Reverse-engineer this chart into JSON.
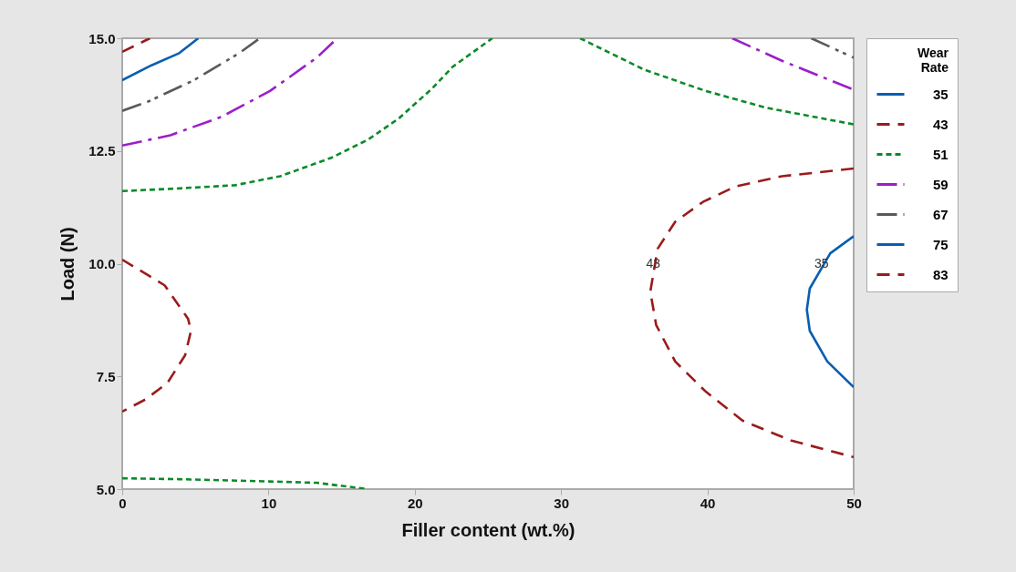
{
  "chart_data": {
    "type": "line",
    "xlabel": "Filler content (wt.%)",
    "ylabel": "Load (N)",
    "legend_title": "Wear Rate",
    "legend": "top right",
    "grid": false,
    "xlim": [
      0,
      50
    ],
    "xticks": [
      0,
      10,
      20,
      30,
      40,
      50
    ],
    "ylim": [
      5,
      15
    ],
    "yticks": [
      {
        "value": 5,
        "label": "5.0"
      },
      7.5,
      {
        "value": 10,
        "label": "10.0"
      },
      12.5,
      {
        "value": 15,
        "label": "15.0"
      }
    ],
    "series": [
      {
        "name": "35",
        "color": "#0a5eb0",
        "line_style": "solid",
        "x": [
          50,
          48.4,
          47.0,
          46.8,
          47.0,
          48.2,
          50
        ],
        "values": [
          10.61,
          10.23,
          9.45,
          8.98,
          8.51,
          7.83,
          7.26
        ]
      },
      {
        "name": "43",
        "color": "#9b1b1b",
        "line_style": "dashed",
        "x": [
          0,
          2.9,
          4.5,
          4.7,
          4.3,
          3.1,
          1.6,
          0,
          null,
          50,
          45.1,
          41.9,
          39.7,
          37.8,
          36.6,
          36.1,
          36.5,
          37.8,
          39.9,
          42.4,
          45.7,
          50
        ],
        "values": [
          10.09,
          9.52,
          8.78,
          8.51,
          7.97,
          7.36,
          6.99,
          6.72,
          null,
          12.11,
          11.94,
          11.71,
          11.37,
          10.93,
          10.33,
          9.38,
          8.64,
          7.83,
          7.16,
          6.52,
          6.08,
          5.71
        ]
      },
      {
        "name": "51",
        "color": "#0a8a2a",
        "line_style": "dotted",
        "x": [
          0,
          3.9,
          7.7,
          10.8,
          14.3,
          16.8,
          18.9,
          21.2,
          22.6,
          25.3,
          null,
          31.3,
          35.7,
          39.9,
          44.0,
          50,
          null,
          0,
          3.9,
          10.1,
          13.3,
          16.8
        ],
        "values": [
          11.61,
          11.67,
          11.74,
          11.94,
          12.35,
          12.75,
          13.22,
          13.89,
          14.37,
          15,
          null,
          15,
          14.3,
          13.83,
          13.46,
          13.09,
          null,
          5.24,
          5.22,
          5.17,
          5.14,
          5.0
        ]
      },
      {
        "name": "59",
        "color": "#9b1fc8",
        "line_style": "dashdot",
        "x": [
          0,
          3.3,
          6.8,
          10.1,
          13.3,
          14.7,
          null,
          41.7,
          45.1,
          50
        ],
        "values": [
          12.62,
          12.85,
          13.26,
          13.83,
          14.57,
          15,
          null,
          15,
          14.5,
          13.86
        ]
      },
      {
        "name": "67",
        "color": "#5a5a5a",
        "line_style": "dashdotdot",
        "x": [
          0,
          1.8,
          4.9,
          8.0,
          9.4,
          null,
          47.1,
          50
        ],
        "values": [
          13.39,
          13.6,
          14.07,
          14.67,
          15,
          null,
          15,
          14.57
        ]
      },
      {
        "name": "75",
        "color": "#0a5eb0",
        "line_style": "solid",
        "x": [
          0,
          2,
          3.9,
          5.2
        ],
        "values": [
          14.07,
          14.4,
          14.67,
          15
        ]
      },
      {
        "name": "83",
        "color": "#9b1b1b",
        "line_style": "dashed",
        "x": [
          0,
          1.9
        ],
        "values": [
          14.7,
          15
        ]
      }
    ],
    "annotations": [
      {
        "text": "43",
        "x": 36.3,
        "y": 10
      },
      {
        "text": "35",
        "x": 47.8,
        "y": 10
      }
    ]
  }
}
